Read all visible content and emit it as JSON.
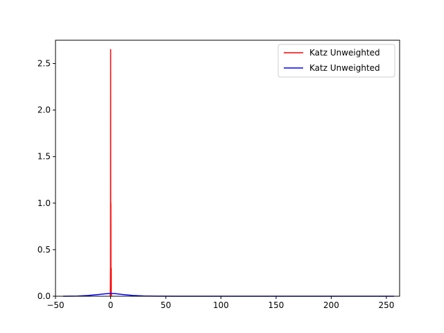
{
  "chart_data": {
    "type": "line",
    "title": "",
    "xlabel": "",
    "ylabel": "",
    "xlim": [
      -50,
      262
    ],
    "ylim": [
      0,
      2.75
    ],
    "xticks": [
      -50,
      0,
      50,
      100,
      150,
      200,
      250
    ],
    "xtick_labels": [
      "−50",
      "0",
      "50",
      "100",
      "150",
      "200",
      "250"
    ],
    "yticks": [
      0.0,
      0.5,
      1.0,
      1.5,
      2.0,
      2.5
    ],
    "ytick_labels": [
      "0.0",
      "0.5",
      "1.0",
      "1.5",
      "2.0",
      "2.5"
    ],
    "grid": false,
    "legend_position": "top-right",
    "series": [
      {
        "name": "Katz Unweighted",
        "color": "#ff0000",
        "x": [
          -0.5,
          -0.3,
          -0.1,
          0.0,
          0.05,
          0.1,
          0.15,
          0.2,
          0.3,
          0.45,
          0.5,
          0.55,
          0.7,
          1.0
        ],
        "y": [
          0.0,
          0.02,
          0.3,
          2.65,
          1.2,
          0.05,
          0.4,
          1.0,
          0.1,
          0.05,
          0.3,
          0.02,
          0.01,
          0.0
        ]
      },
      {
        "name": "Katz Unweighted",
        "color": "#0000ff",
        "x": [
          -43,
          -30,
          -20,
          -10,
          -5,
          0,
          5,
          10,
          20,
          30,
          40,
          60,
          100,
          150,
          200,
          257
        ],
        "y": [
          0.0,
          0.002,
          0.008,
          0.02,
          0.026,
          0.03,
          0.027,
          0.02,
          0.008,
          0.003,
          0.001,
          0.0,
          0.0,
          0.0,
          0.0,
          0.0
        ]
      }
    ]
  }
}
